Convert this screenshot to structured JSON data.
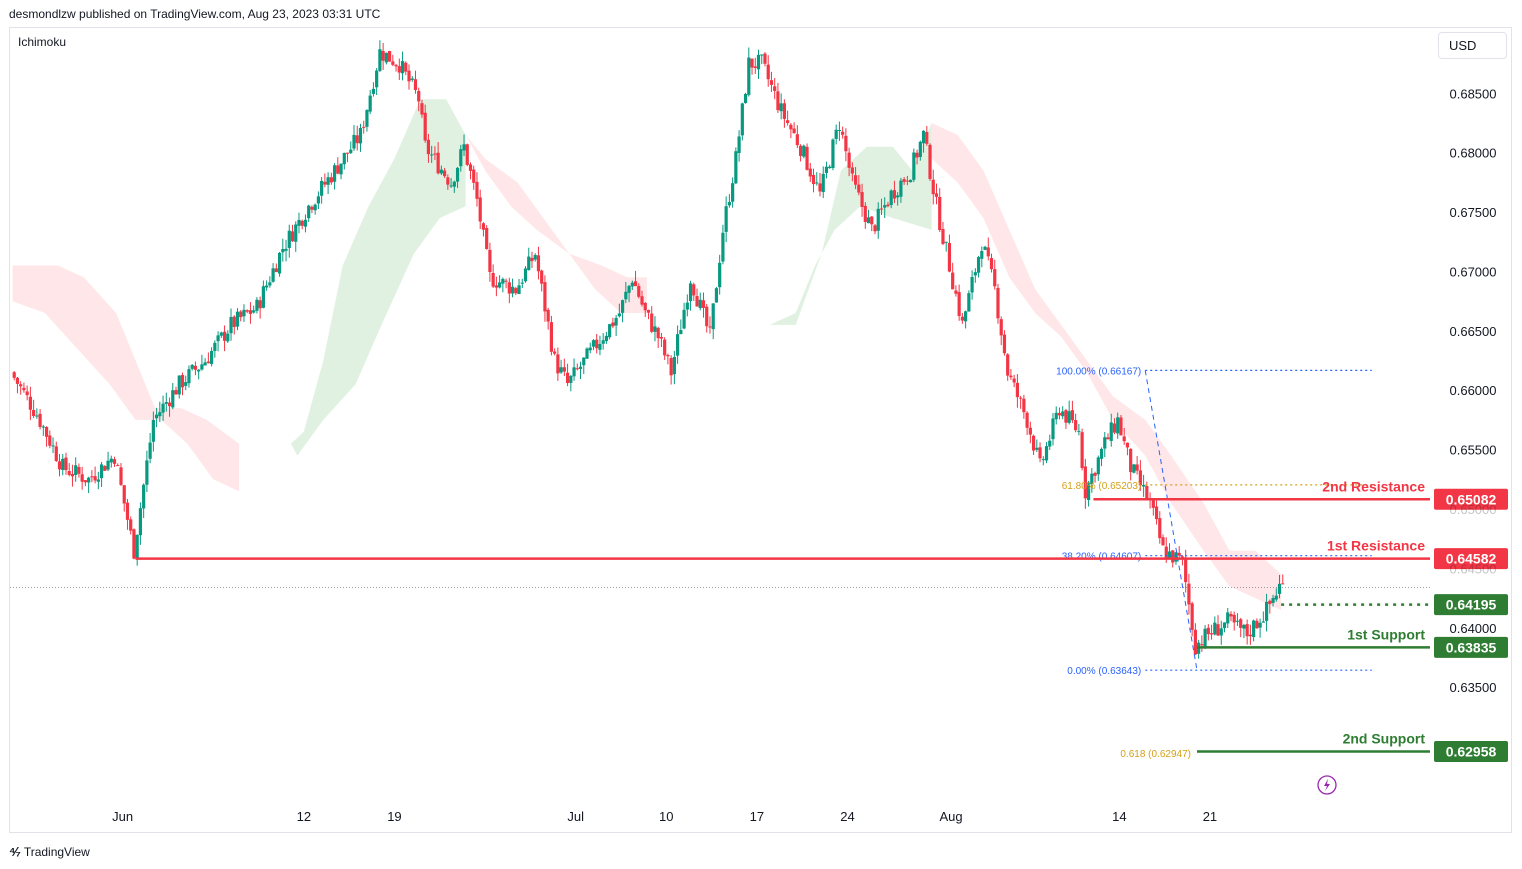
{
  "header": {
    "publisher": "desmondlzw published on TradingView.com, Aug 23, 2023 03:31 UTC"
  },
  "indicator": {
    "name": "Ichimoku"
  },
  "currency": "USD",
  "footer": {
    "brand": "TradingView"
  },
  "colors": {
    "up": "#089981",
    "down": "#f23645",
    "resistance": "#f23645",
    "support": "#2e7d32",
    "fib_blue": "#2962ff",
    "fib_gold": "#d4a017",
    "cloud_bull": "#c8e6c9",
    "cloud_bear": "#ffcdd2"
  },
  "chart_data": {
    "type": "candlestick",
    "pair_quote": "USD",
    "ylim": [
      0.6255,
      0.6905
    ],
    "y_ticks": [
      "0.68500",
      "0.68000",
      "0.67500",
      "0.67000",
      "0.66500",
      "0.66000",
      "0.65500",
      "0.65000",
      "0.64500",
      "0.64000",
      "0.63500"
    ],
    "y_tick_values": [
      0.685,
      0.68,
      0.675,
      0.67,
      0.665,
      0.66,
      0.655,
      0.65,
      0.645,
      0.64,
      0.635
    ],
    "x_ticks": [
      {
        "label": "Jun",
        "day": 21.5
      },
      {
        "label": "12",
        "day": 35.5
      },
      {
        "label": "19",
        "day": 42.5
      },
      {
        "label": "Jul",
        "day": 56.5
      },
      {
        "label": "10",
        "day": 63.5
      },
      {
        "label": "17",
        "day": 70.5
      },
      {
        "label": "24",
        "day": 77.5
      },
      {
        "label": "Aug",
        "day": 85.5
      },
      {
        "label": "14",
        "day": 98.5
      },
      {
        "label": "21",
        "day": 105.5
      }
    ],
    "x_range_days": [
      12.8,
      122.5
    ],
    "price_path": [
      [
        13.0,
        0.6615
      ],
      [
        15.0,
        0.658
      ],
      [
        17.0,
        0.6535
      ],
      [
        19.0,
        0.6525
      ],
      [
        21.0,
        0.6545
      ],
      [
        22.5,
        0.6465
      ],
      [
        24.0,
        0.6575
      ],
      [
        26.0,
        0.6605
      ],
      [
        28.0,
        0.6625
      ],
      [
        30.0,
        0.6655
      ],
      [
        32.0,
        0.667
      ],
      [
        34.0,
        0.672
      ],
      [
        36.0,
        0.6755
      ],
      [
        38.0,
        0.6785
      ],
      [
        40.0,
        0.6815
      ],
      [
        41.5,
        0.6885
      ],
      [
        43.0,
        0.6875
      ],
      [
        44.5,
        0.6845
      ],
      [
        45.0,
        0.6805
      ],
      [
        47.0,
        0.6775
      ],
      [
        48.0,
        0.6805
      ],
      [
        49.0,
        0.676
      ],
      [
        50.0,
        0.6695
      ],
      [
        52.0,
        0.6685
      ],
      [
        53.5,
        0.6715
      ],
      [
        55.0,
        0.6625
      ],
      [
        56.0,
        0.6605
      ],
      [
        58.0,
        0.6635
      ],
      [
        60.0,
        0.6665
      ],
      [
        61.0,
        0.6695
      ],
      [
        62.0,
        0.6665
      ],
      [
        63.0,
        0.6645
      ],
      [
        64.0,
        0.6615
      ],
      [
        65.5,
        0.6695
      ],
      [
        67.0,
        0.6645
      ],
      [
        68.0,
        0.6735
      ],
      [
        69.0,
        0.6795
      ],
      [
        70.0,
        0.6875
      ],
      [
        71.0,
        0.6875
      ],
      [
        72.5,
        0.6835
      ],
      [
        74.0,
        0.6805
      ],
      [
        75.5,
        0.6765
      ],
      [
        77.0,
        0.6825
      ],
      [
        78.0,
        0.6775
      ],
      [
        79.5,
        0.6735
      ],
      [
        81.0,
        0.6765
      ],
      [
        82.5,
        0.6785
      ],
      [
        83.5,
        0.6815
      ],
      [
        84.5,
        0.6755
      ],
      [
        85.5,
        0.6705
      ],
      [
        86.5,
        0.6655
      ],
      [
        88.0,
        0.6725
      ],
      [
        89.0,
        0.6685
      ],
      [
        90.0,
        0.6615
      ],
      [
        91.5,
        0.6575
      ],
      [
        92.5,
        0.6535
      ],
      [
        94.0,
        0.6585
      ],
      [
        95.5,
        0.6565
      ],
      [
        96.0,
        0.6515
      ],
      [
        97.5,
        0.6555
      ],
      [
        98.5,
        0.6575
      ],
      [
        99.5,
        0.6535
      ],
      [
        101.0,
        0.6505
      ],
      [
        102.0,
        0.6465
      ],
      [
        103.5,
        0.6455
      ],
      [
        104.5,
        0.6385
      ],
      [
        105.5,
        0.6395
      ],
      [
        107.0,
        0.6405
      ],
      [
        108.5,
        0.6395
      ],
      [
        110.0,
        0.6415
      ],
      [
        111.0,
        0.6435
      ]
    ],
    "ichimoku_cloud": {
      "bullish_segments": [
        [
          [
            34.5,
            0.6555
          ],
          [
            35.5,
            0.6565
          ],
          [
            37.0,
            0.6625
          ],
          [
            38.5,
            0.6705
          ],
          [
            40.5,
            0.6755
          ],
          [
            42.5,
            0.6795
          ],
          [
            44.5,
            0.6845
          ],
          [
            46.5,
            0.6845
          ],
          [
            48.0,
            0.6815
          ],
          [
            48.0,
            0.6755
          ],
          [
            46.0,
            0.6745
          ],
          [
            44.0,
            0.6715
          ],
          [
            41.5,
            0.6655
          ],
          [
            39.5,
            0.6605
          ],
          [
            37.0,
            0.6575
          ],
          [
            35.0,
            0.6545
          ]
        ],
        [
          [
            71.5,
            0.6655
          ],
          [
            73.5,
            0.6655
          ],
          [
            75.5,
            0.6715
          ],
          [
            77.0,
            0.6785
          ],
          [
            79.0,
            0.6805
          ],
          [
            81.0,
            0.6805
          ],
          [
            82.5,
            0.6785
          ],
          [
            84.0,
            0.6825
          ],
          [
            84.0,
            0.6735
          ],
          [
            81.0,
            0.6745
          ],
          [
            78.5,
            0.6755
          ],
          [
            76.5,
            0.6735
          ],
          [
            75.0,
            0.6705
          ],
          [
            73.5,
            0.6665
          ]
        ]
      ],
      "bearish_segments": [
        [
          [
            13.0,
            0.6705
          ],
          [
            15.0,
            0.6705
          ],
          [
            16.5,
            0.6705
          ],
          [
            18.5,
            0.6695
          ],
          [
            21.0,
            0.6665
          ],
          [
            22.5,
            0.6625
          ],
          [
            24.0,
            0.6585
          ],
          [
            26.0,
            0.6585
          ],
          [
            28.0,
            0.6575
          ],
          [
            30.5,
            0.6555
          ],
          [
            30.5,
            0.6515
          ],
          [
            28.5,
            0.6525
          ],
          [
            26.5,
            0.6555
          ],
          [
            24.5,
            0.6575
          ],
          [
            22.5,
            0.6575
          ],
          [
            20.5,
            0.6605
          ],
          [
            18.0,
            0.6635
          ],
          [
            15.5,
            0.6665
          ],
          [
            13.0,
            0.6675
          ]
        ],
        [
          [
            48.0,
            0.6815
          ],
          [
            49.5,
            0.6795
          ],
          [
            52.0,
            0.6775
          ],
          [
            54.0,
            0.6745
          ],
          [
            56.0,
            0.6715
          ],
          [
            58.5,
            0.6705
          ],
          [
            60.5,
            0.6695
          ],
          [
            62.0,
            0.6695
          ],
          [
            62.0,
            0.6665
          ],
          [
            60.0,
            0.6665
          ],
          [
            58.0,
            0.6685
          ],
          [
            56.0,
            0.6715
          ],
          [
            53.5,
            0.6735
          ],
          [
            51.5,
            0.6755
          ],
          [
            49.5,
            0.6785
          ]
        ],
        [
          [
            84.0,
            0.6825
          ],
          [
            86.0,
            0.6815
          ],
          [
            88.0,
            0.6785
          ],
          [
            90.0,
            0.6735
          ],
          [
            92.0,
            0.6685
          ],
          [
            94.0,
            0.6655
          ],
          [
            96.0,
            0.6625
          ],
          [
            98.0,
            0.6595
          ],
          [
            100.5,
            0.6575
          ],
          [
            102.5,
            0.6545
          ],
          [
            105.0,
            0.6505
          ],
          [
            107.0,
            0.6465
          ],
          [
            109.0,
            0.6465
          ],
          [
            111.0,
            0.6445
          ],
          [
            111.0,
            0.6415
          ],
          [
            109.0,
            0.6425
          ],
          [
            107.0,
            0.6435
          ],
          [
            105.0,
            0.6465
          ],
          [
            102.5,
            0.6505
          ],
          [
            100.5,
            0.6545
          ],
          [
            98.0,
            0.6575
          ],
          [
            96.0,
            0.6615
          ],
          [
            94.0,
            0.6645
          ],
          [
            92.0,
            0.6665
          ],
          [
            90.0,
            0.6695
          ],
          [
            88.0,
            0.6745
          ],
          [
            86.0,
            0.6775
          ],
          [
            84.0,
            0.6795
          ]
        ]
      ]
    },
    "levels": [
      {
        "name": "2nd Resistance",
        "value": 0.65082,
        "label": "0.65082",
        "from_day": 96.5,
        "kind": "resistance",
        "style": "solid"
      },
      {
        "name": "1st Resistance",
        "value": 0.64582,
        "label": "0.64582",
        "from_day": 22.5,
        "kind": "resistance",
        "style": "solid"
      },
      {
        "name": "",
        "value": 0.64195,
        "label": "0.64195",
        "from_day": 111.0,
        "kind": "support",
        "style": "dotted"
      },
      {
        "name": "1st Support",
        "value": 0.63835,
        "label": "0.63835",
        "from_day": 104.5,
        "kind": "support",
        "style": "solid"
      },
      {
        "name": "2nd Support",
        "value": 0.62958,
        "label": "0.62958",
        "from_day": 104.5,
        "kind": "support",
        "style": "solid"
      }
    ],
    "fibonacci": [
      {
        "text": "100.00% (0.66167)",
        "value": 0.66167,
        "color": "blue"
      },
      {
        "text": "61.80% (0.65203)",
        "value": 0.65203,
        "color": "gold"
      },
      {
        "text": "38.20% (0.64607)",
        "value": 0.64607,
        "color": "blue"
      },
      {
        "text": "0.00% (0.63643)",
        "value": 0.63643,
        "color": "blue"
      }
    ],
    "fib_ext": {
      "text": "0.618 (0.62947)",
      "value": 0.62947
    },
    "fib_range_days": [
      100.5,
      118.0
    ],
    "current_price_dotted": 0.6434
  }
}
